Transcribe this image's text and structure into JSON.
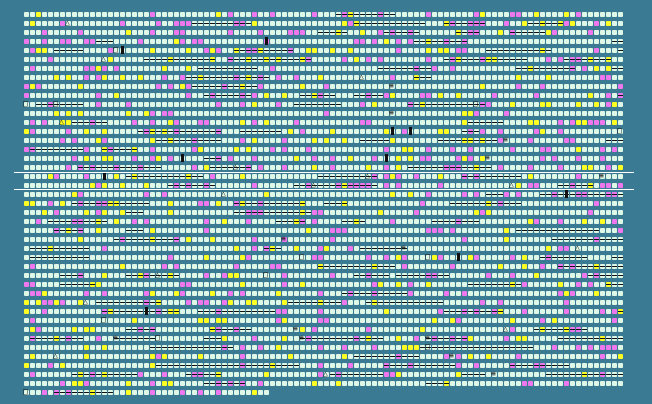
{
  "colors": {
    "background": "#3a7a92",
    "base": "#dff7e6",
    "magenta": "#ee77ee",
    "yellow": "#ffff22",
    "ink": "#111111",
    "band": "#ffffff"
  },
  "grid": {
    "rows": 43,
    "cols": 100,
    "last_row_cols": 41
  },
  "symbols": [
    "triangle-icon",
    "square-icon",
    "menu-icon"
  ]
}
